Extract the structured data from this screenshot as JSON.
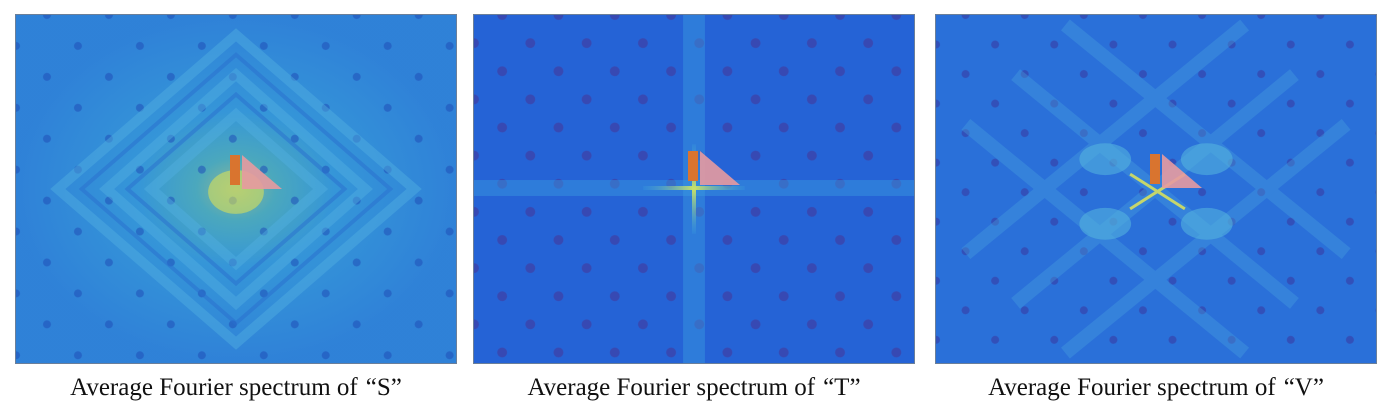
{
  "panels": [
    {
      "caption_prefix": "Average Fourier spectrum of",
      "caption_label": "“S”",
      "pattern": "diamond-rings",
      "base_color": "#2f7fd9"
    },
    {
      "caption_prefix": "Average Fourier spectrum of",
      "caption_label": "“T”",
      "pattern": "cross",
      "base_color": "#2563d8"
    },
    {
      "caption_prefix": "Average Fourier spectrum of",
      "caption_label": "“V”",
      "pattern": "x-lobes",
      "base_color": "#2a6fdb"
    }
  ],
  "marker_colors": {
    "orange_bar": "#d9742f",
    "pink_triangle": "#e79aa0"
  }
}
